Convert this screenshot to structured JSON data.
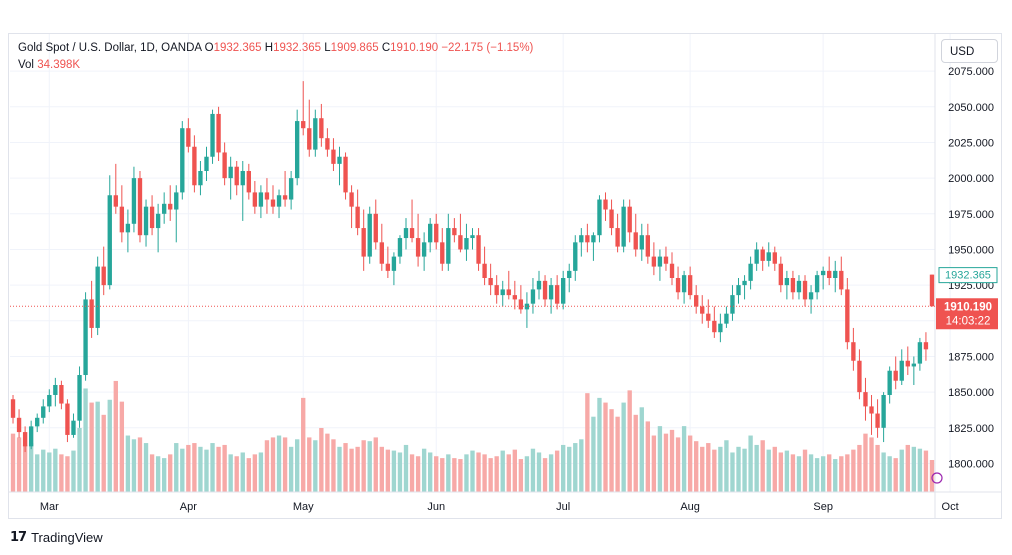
{
  "legend": {
    "symbol": "Gold Spot / U.S. Dollar, 1D, OANDA",
    "open_label": "O",
    "open": "1932.365",
    "high_label": "H",
    "high": "1932.365",
    "low_label": "L",
    "low": "1909.865",
    "close_label": "C",
    "close": "1910.190",
    "change": "−22.175 (−1.15%)",
    "vol_label": "Vol",
    "vol": "34.398K"
  },
  "currency": "USD",
  "brand": "TradingView",
  "last_price_tag": {
    "price": "1910.190",
    "countdown": "14:03:22"
  },
  "open_price_tag": "1932.365",
  "colors": {
    "up": "#26a69a",
    "down": "#ef5350",
    "up_vol": "#9fd6d0",
    "down_vol": "#f7a9a7",
    "grid": "#f0f3fa"
  },
  "chart_data": {
    "type": "candlestick",
    "title": "Gold Spot / U.S. Dollar, 1D, OANDA",
    "ylim": [
      1780,
      2080
    ],
    "y_ticks": [
      "1800.000",
      "1825.000",
      "1850.000",
      "1875.000",
      "1900.000",
      "1925.000",
      "1950.000",
      "1975.000",
      "2000.000",
      "2025.000",
      "2050.000",
      "2075.000"
    ],
    "month_labels": [
      {
        "label": "Mar",
        "index": 6
      },
      {
        "label": "Apr",
        "index": 29
      },
      {
        "label": "May",
        "index": 48
      },
      {
        "label": "Jun",
        "index": 70
      },
      {
        "label": "Jul",
        "index": 91
      },
      {
        "label": "Aug",
        "index": 112
      },
      {
        "label": "Sep",
        "index": 134
      },
      {
        "label": "Oct",
        "index": 155
      }
    ],
    "candles": [
      [
        1845,
        1848,
        1828,
        1832,
        62
      ],
      [
        1832,
        1838,
        1818,
        1822,
        58
      ],
      [
        1822,
        1826,
        1808,
        1812,
        50
      ],
      [
        1812,
        1830,
        1810,
        1826,
        52
      ],
      [
        1826,
        1835,
        1822,
        1832,
        40
      ],
      [
        1832,
        1845,
        1828,
        1840,
        45
      ],
      [
        1840,
        1852,
        1836,
        1848,
        42
      ],
      [
        1848,
        1860,
        1840,
        1855,
        46
      ],
      [
        1855,
        1858,
        1838,
        1842,
        40
      ],
      [
        1842,
        1845,
        1815,
        1820,
        38
      ],
      [
        1820,
        1835,
        1818,
        1830,
        44
      ],
      [
        1830,
        1868,
        1825,
        1862,
        68
      ],
      [
        1862,
        1920,
        1858,
        1915,
        110
      ],
      [
        1915,
        1928,
        1888,
        1895,
        95
      ],
      [
        1895,
        1945,
        1890,
        1938,
        96
      ],
      [
        1938,
        1952,
        1918,
        1925,
        82
      ],
      [
        1925,
        2002,
        1922,
        1988,
        98
      ],
      [
        1988,
        2010,
        1975,
        1980,
        118
      ],
      [
        1980,
        1995,
        1955,
        1962,
        96
      ],
      [
        1962,
        1978,
        1948,
        1968,
        60
      ],
      [
        1968,
        2008,
        1962,
        2000,
        56
      ],
      [
        2000,
        2005,
        1955,
        1960,
        58
      ],
      [
        1960,
        1985,
        1952,
        1980,
        52
      ],
      [
        1980,
        1988,
        1960,
        1965,
        40
      ],
      [
        1965,
        1982,
        1948,
        1975,
        38
      ],
      [
        1975,
        1990,
        1968,
        1982,
        36
      ],
      [
        1982,
        1995,
        1970,
        1978,
        40
      ],
      [
        1978,
        1995,
        1955,
        1990,
        52
      ],
      [
        1990,
        2040,
        1985,
        2035,
        46
      ],
      [
        2035,
        2042,
        2018,
        2022,
        50
      ],
      [
        2022,
        2030,
        1990,
        1995,
        52
      ],
      [
        1995,
        2012,
        1988,
        2005,
        48
      ],
      [
        2005,
        2022,
        1998,
        2015,
        45
      ],
      [
        2015,
        2048,
        2010,
        2045,
        52
      ],
      [
        2045,
        2050,
        2012,
        2018,
        48
      ],
      [
        2018,
        2025,
        1995,
        2000,
        50
      ],
      [
        2000,
        2015,
        1985,
        2008,
        40
      ],
      [
        2008,
        2012,
        1988,
        1995,
        38
      ],
      [
        1995,
        2012,
        1970,
        2005,
        42
      ],
      [
        2005,
        2010,
        1985,
        1990,
        36
      ],
      [
        1990,
        1998,
        1975,
        1980,
        40
      ],
      [
        1980,
        1995,
        1972,
        1990,
        42
      ],
      [
        1990,
        2000,
        1975,
        1985,
        55
      ],
      [
        1985,
        1995,
        1975,
        1980,
        58
      ],
      [
        1980,
        1992,
        1972,
        1988,
        60
      ],
      [
        1988,
        2005,
        1980,
        1985,
        58
      ],
      [
        1985,
        2005,
        1978,
        2000,
        48
      ],
      [
        2000,
        2048,
        1995,
        2040,
        56
      ],
      [
        2040,
        2068,
        2030,
        2035,
        100
      ],
      [
        2035,
        2055,
        2015,
        2020,
        58
      ],
      [
        2020,
        2048,
        2015,
        2042,
        55
      ],
      [
        2042,
        2052,
        2022,
        2028,
        68
      ],
      [
        2028,
        2035,
        2015,
        2020,
        62
      ],
      [
        2020,
        2028,
        2005,
        2010,
        56
      ],
      [
        2010,
        2022,
        1995,
        2015,
        48
      ],
      [
        2015,
        2018,
        1985,
        1990,
        52
      ],
      [
        1990,
        1995,
        1965,
        1980,
        46
      ],
      [
        1980,
        1992,
        1960,
        1965,
        48
      ],
      [
        1965,
        1978,
        1935,
        1945,
        55
      ],
      [
        1945,
        1980,
        1940,
        1975,
        54
      ],
      [
        1975,
        1985,
        1950,
        1955,
        58
      ],
      [
        1955,
        1968,
        1935,
        1940,
        48
      ],
      [
        1940,
        1952,
        1930,
        1935,
        45
      ],
      [
        1935,
        1948,
        1925,
        1945,
        44
      ],
      [
        1945,
        1960,
        1940,
        1958,
        42
      ],
      [
        1958,
        1972,
        1950,
        1965,
        50
      ],
      [
        1965,
        1985,
        1955,
        1958,
        40
      ],
      [
        1958,
        1975,
        1938,
        1945,
        38
      ],
      [
        1945,
        1962,
        1935,
        1955,
        46
      ],
      [
        1955,
        1972,
        1948,
        1968,
        42
      ],
      [
        1968,
        1975,
        1950,
        1955,
        38
      ],
      [
        1955,
        1965,
        1935,
        1940,
        36
      ],
      [
        1940,
        1975,
        1935,
        1965,
        40
      ],
      [
        1965,
        1972,
        1955,
        1960,
        36
      ],
      [
        1960,
        1975,
        1948,
        1950,
        35
      ],
      [
        1950,
        1968,
        1942,
        1958,
        40
      ],
      [
        1958,
        1965,
        1950,
        1960,
        44
      ],
      [
        1960,
        1965,
        1935,
        1940,
        42
      ],
      [
        1940,
        1952,
        1925,
        1930,
        40
      ],
      [
        1930,
        1940,
        1918,
        1925,
        36
      ],
      [
        1925,
        1932,
        1912,
        1918,
        38
      ],
      [
        1918,
        1928,
        1910,
        1922,
        44
      ],
      [
        1922,
        1935,
        1915,
        1918,
        40
      ],
      [
        1918,
        1928,
        1908,
        1915,
        45
      ],
      [
        1915,
        1925,
        1905,
        1908,
        35
      ],
      [
        1908,
        1920,
        1895,
        1912,
        38
      ],
      [
        1912,
        1930,
        1905,
        1922,
        46
      ],
      [
        1922,
        1935,
        1915,
        1928,
        42
      ],
      [
        1928,
        1932,
        1910,
        1915,
        36
      ],
      [
        1915,
        1930,
        1905,
        1925,
        40
      ],
      [
        1925,
        1932,
        1908,
        1912,
        44
      ],
      [
        1912,
        1935,
        1908,
        1930,
        50
      ],
      [
        1930,
        1940,
        1920,
        1935,
        48
      ],
      [
        1935,
        1960,
        1928,
        1955,
        52
      ],
      [
        1955,
        1965,
        1945,
        1960,
        56
      ],
      [
        1960,
        1968,
        1948,
        1955,
        105
      ],
      [
        1955,
        1962,
        1942,
        1960,
        80
      ],
      [
        1960,
        1988,
        1955,
        1985,
        100
      ],
      [
        1985,
        1990,
        1970,
        1978,
        95
      ],
      [
        1978,
        1985,
        1960,
        1965,
        88
      ],
      [
        1965,
        1975,
        1948,
        1952,
        80
      ],
      [
        1952,
        1985,
        1948,
        1980,
        95
      ],
      [
        1980,
        1985,
        1955,
        1962,
        108
      ],
      [
        1962,
        1975,
        1945,
        1950,
        82
      ],
      [
        1950,
        1968,
        1942,
        1960,
        90
      ],
      [
        1960,
        1968,
        1940,
        1945,
        75
      ],
      [
        1945,
        1955,
        1932,
        1938,
        60
      ],
      [
        1938,
        1950,
        1928,
        1945,
        70
      ],
      [
        1945,
        1952,
        1935,
        1940,
        62
      ],
      [
        1940,
        1948,
        1925,
        1930,
        66
      ],
      [
        1930,
        1938,
        1915,
        1920,
        58
      ],
      [
        1920,
        1935,
        1912,
        1932,
        70
      ],
      [
        1932,
        1938,
        1915,
        1918,
        60
      ],
      [
        1918,
        1925,
        1905,
        1910,
        54
      ],
      [
        1910,
        1918,
        1898,
        1905,
        48
      ],
      [
        1905,
        1915,
        1895,
        1900,
        52
      ],
      [
        1900,
        1910,
        1888,
        1892,
        45
      ],
      [
        1892,
        1905,
        1885,
        1898,
        48
      ],
      [
        1898,
        1910,
        1895,
        1905,
        55
      ],
      [
        1905,
        1925,
        1900,
        1918,
        42
      ],
      [
        1918,
        1930,
        1912,
        1925,
        48
      ],
      [
        1925,
        1932,
        1915,
        1928,
        46
      ],
      [
        1928,
        1945,
        1922,
        1940,
        60
      ],
      [
        1940,
        1955,
        1935,
        1950,
        50
      ],
      [
        1950,
        1952,
        1935,
        1942,
        55
      ],
      [
        1942,
        1955,
        1938,
        1948,
        45
      ],
      [
        1948,
        1952,
        1935,
        1940,
        48
      ],
      [
        1940,
        1945,
        1920,
        1925,
        42
      ],
      [
        1925,
        1935,
        1915,
        1930,
        44
      ],
      [
        1930,
        1935,
        1915,
        1920,
        40
      ],
      [
        1920,
        1932,
        1915,
        1928,
        38
      ],
      [
        1928,
        1932,
        1910,
        1915,
        45
      ],
      [
        1915,
        1925,
        1905,
        1920,
        40
      ],
      [
        1920,
        1935,
        1915,
        1932,
        36
      ],
      [
        1932,
        1938,
        1922,
        1935,
        38
      ],
      [
        1935,
        1945,
        1925,
        1930,
        40
      ],
      [
        1930,
        1942,
        1920,
        1935,
        35
      ],
      [
        1935,
        1945,
        1918,
        1922,
        38
      ],
      [
        1922,
        1930,
        1880,
        1885,
        40
      ],
      [
        1885,
        1895,
        1865,
        1872,
        45
      ],
      [
        1872,
        1880,
        1845,
        1850,
        50
      ],
      [
        1850,
        1860,
        1830,
        1840,
        62
      ],
      [
        1840,
        1848,
        1820,
        1835,
        58
      ],
      [
        1835,
        1845,
        1818,
        1825,
        50
      ],
      [
        1825,
        1850,
        1815,
        1848,
        42
      ],
      [
        1848,
        1868,
        1842,
        1865,
        38
      ],
      [
        1865,
        1875,
        1852,
        1858,
        36
      ],
      [
        1858,
        1880,
        1855,
        1872,
        45
      ],
      [
        1872,
        1882,
        1862,
        1868,
        50
      ],
      [
        1868,
        1875,
        1855,
        1870,
        48
      ],
      [
        1870,
        1888,
        1865,
        1885,
        46
      ],
      [
        1885,
        1892,
        1872,
        1880,
        44
      ],
      [
        1932.365,
        1932.365,
        1909.865,
        1910.19,
        34
      ]
    ]
  }
}
